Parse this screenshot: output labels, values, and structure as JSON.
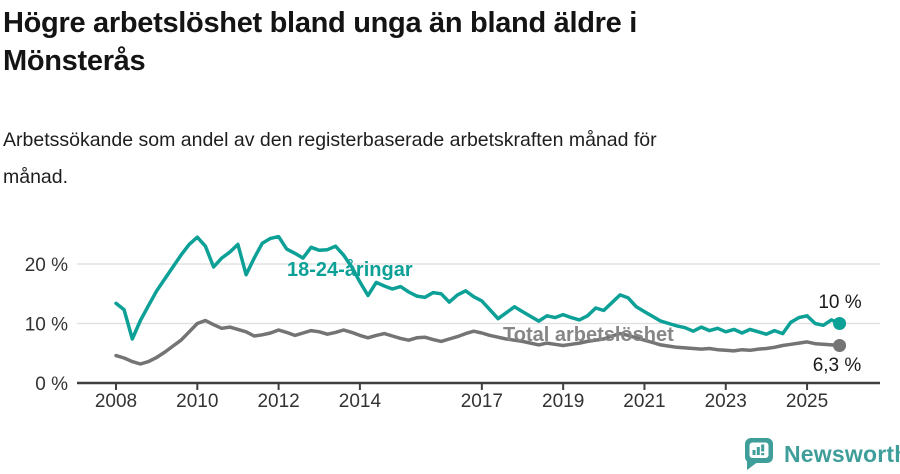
{
  "header": {
    "title_lines": [
      "Högre arbetslöshet bland unga än bland äldre i",
      "Mönsterås"
    ],
    "subtitle_lines": [
      "Arbetssökande som andel av den registerbaserade arbetskraften månad för",
      "månad."
    ]
  },
  "colors": {
    "young_series": "#0da097",
    "total_series": "#747474",
    "total_label": "#868686",
    "grid": "#dedede",
    "axis": "#3f3f3f",
    "axis_text": "#333333",
    "value_label": "#1a1a1a",
    "brand_teal": "#3f9e9a",
    "background": "#ffffff"
  },
  "chart_data": {
    "type": "line",
    "title": "Högre arbetslöshet bland unga än bland äldre i Mönsterås",
    "subtitle": "Arbetssökande som andel av den registerbaserade arbetskraften månad för månad.",
    "xlabel": "",
    "ylabel": "",
    "x_start_year": 2008.0,
    "x_step_years": 0.2,
    "x_end_year": 2025.8,
    "xlim": [
      2007.0,
      2026.8
    ],
    "ylim": [
      0,
      27
    ],
    "grid": "horizontal",
    "legend_position": "inline-labels",
    "x_tick_years": [
      2008,
      2010,
      2012,
      2014,
      2017,
      2019,
      2021,
      2023,
      2025
    ],
    "x_tick_labels": [
      "2008",
      "2010",
      "2012",
      "2014",
      "2017",
      "2019",
      "2021",
      "2023",
      "2025"
    ],
    "y_ticks": [
      {
        "value": 0,
        "label": "0 %"
      },
      {
        "value": 10,
        "label": "10 %"
      },
      {
        "value": 20,
        "label": "20 %"
      }
    ],
    "series": [
      {
        "name": "18-24-åringar",
        "color": "#0da097",
        "end_label": "10 %",
        "last_value": 10.0,
        "values": [
          13.4,
          12.3,
          7.4,
          10.5,
          13.0,
          15.5,
          17.5,
          19.5,
          21.5,
          23.3,
          24.5,
          23.0,
          19.5,
          21.0,
          22.0,
          23.3,
          18.2,
          21.0,
          23.5,
          24.3,
          24.6,
          22.5,
          21.8,
          21.0,
          22.8,
          22.3,
          22.4,
          23.0,
          21.5,
          19.5,
          17.0,
          14.7,
          16.9,
          16.3,
          15.8,
          16.2,
          15.3,
          14.6,
          14.4,
          15.2,
          15.0,
          13.6,
          14.8,
          15.5,
          14.5,
          13.8,
          12.3,
          10.8,
          11.8,
          12.8,
          12.0,
          11.2,
          10.4,
          11.3,
          11.0,
          11.5,
          11.0,
          10.6,
          11.3,
          12.6,
          12.2,
          13.5,
          14.8,
          14.3,
          12.8,
          12.0,
          11.2,
          10.4,
          10.0,
          9.6,
          9.3,
          8.7,
          9.4,
          8.8,
          9.2,
          8.6,
          9.0,
          8.4,
          9.0,
          8.6,
          8.2,
          8.8,
          8.3,
          10.2,
          11.0,
          11.3,
          10.0,
          9.7,
          10.6,
          10.0
        ]
      },
      {
        "name": "Total arbetslöshet",
        "color": "#747474",
        "end_label": "6,3 %",
        "last_value": 6.3,
        "values": [
          4.6,
          4.2,
          3.6,
          3.2,
          3.6,
          4.3,
          5.2,
          6.2,
          7.2,
          8.6,
          10.0,
          10.5,
          9.8,
          9.2,
          9.4,
          9.0,
          8.6,
          7.9,
          8.1,
          8.4,
          8.9,
          8.5,
          8.0,
          8.4,
          8.8,
          8.6,
          8.2,
          8.5,
          8.9,
          8.5,
          8.0,
          7.6,
          8.0,
          8.3,
          7.9,
          7.5,
          7.2,
          7.6,
          7.7,
          7.3,
          7.0,
          7.4,
          7.8,
          8.3,
          8.7,
          8.4,
          8.0,
          7.7,
          7.4,
          7.2,
          7.0,
          6.7,
          6.4,
          6.7,
          6.5,
          6.3,
          6.5,
          6.7,
          7.0,
          7.2,
          7.4,
          7.9,
          8.3,
          8.0,
          7.6,
          7.2,
          6.8,
          6.4,
          6.2,
          6.0,
          5.9,
          5.8,
          5.7,
          5.8,
          5.6,
          5.5,
          5.4,
          5.6,
          5.5,
          5.7,
          5.8,
          6.0,
          6.3,
          6.5,
          6.7,
          6.9,
          6.6,
          6.5,
          6.4,
          6.3
        ]
      }
    ]
  },
  "footer": {
    "brand": "Newsworthy"
  }
}
